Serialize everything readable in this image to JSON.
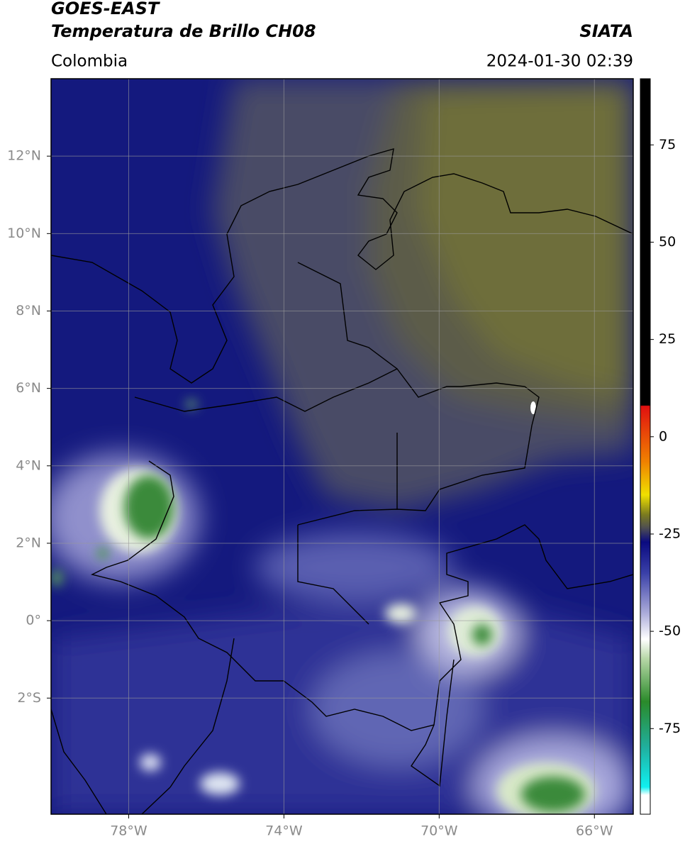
{
  "header": {
    "title": "GOES-EAST",
    "subtitle": "Temperatura de Brillo CH08",
    "source": "SIATA",
    "region": "Colombia",
    "datetime": "2024-01-30 02:39"
  },
  "map": {
    "xlim": [
      -80,
      -65
    ],
    "ylim": [
      -5,
      14
    ],
    "xticks": [
      {
        "value": -78,
        "label": "78°W"
      },
      {
        "value": -74,
        "label": "74°W"
      },
      {
        "value": -70,
        "label": "70°W"
      },
      {
        "value": -66,
        "label": "66°W"
      }
    ],
    "yticks": [
      {
        "value": 12,
        "label": "12°N"
      },
      {
        "value": 10,
        "label": "10°N"
      },
      {
        "value": 8,
        "label": "8°N"
      },
      {
        "value": 6,
        "label": "6°N"
      },
      {
        "value": 4,
        "label": "4°N"
      },
      {
        "value": 2,
        "label": "2°N"
      },
      {
        "value": 0,
        "label": "0°"
      },
      {
        "value": -2,
        "label": "2°S"
      }
    ],
    "grid": true
  },
  "colorbar": {
    "lim": [
      -97,
      92
    ],
    "ticks": [
      75,
      50,
      25,
      0,
      -25,
      -50,
      -75
    ]
  }
}
